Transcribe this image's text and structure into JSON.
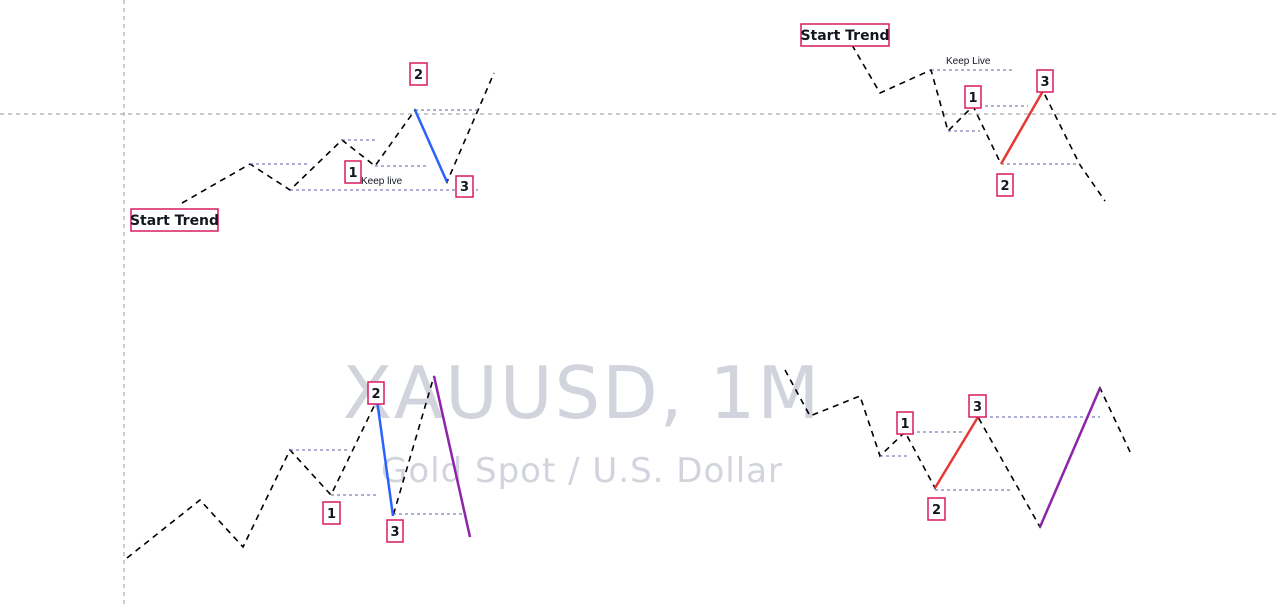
{
  "watermark": {
    "symbol": "XAUUSD, 1M",
    "description": "Gold Spot / U.S. Dollar"
  },
  "colors": {
    "background": "#ffffff",
    "wave": "#000000",
    "level": "#5b5fa8",
    "crosshair": "#9598a1",
    "label_border": "#d81b60",
    "blue_leg": "#2962ff",
    "red_leg": "#e53935",
    "purple_leg": "#8e24aa",
    "watermark": "#d1d4dc"
  },
  "drawings": {
    "top_left": {
      "start_label": "Start Trend",
      "keep_label": "Keep live",
      "point_labels": [
        "1",
        "2",
        "3"
      ],
      "leg_color": "blue"
    },
    "top_right": {
      "start_label": "Start Trend",
      "keep_label": "Keep Live",
      "point_labels": [
        "1",
        "2",
        "3"
      ],
      "leg_color": "red"
    },
    "bottom_left": {
      "point_labels": [
        "2",
        "1",
        "3"
      ],
      "leg_colors": [
        "blue",
        "purple"
      ]
    },
    "bottom_right": {
      "point_labels": [
        "1",
        "3",
        "2"
      ],
      "leg_colors": [
        "red",
        "purple"
      ]
    }
  }
}
